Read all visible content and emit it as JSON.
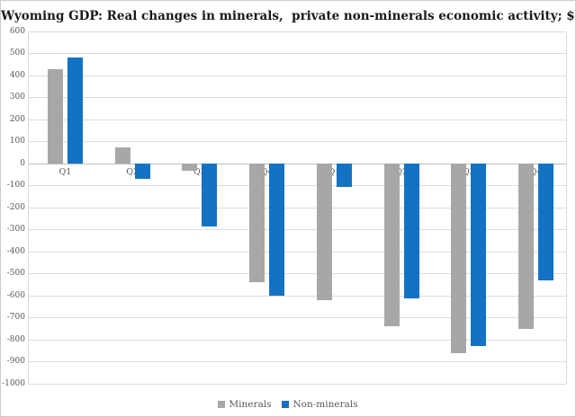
{
  "title": "Wyoming GDP: Real changes in minerals,  private non-minerals economic activity; $m",
  "legend": {
    "items": [
      {
        "label": "Minerals",
        "color": "#a7a7a7"
      },
      {
        "label": "Non-minerals",
        "color": "#1372c4"
      }
    ]
  },
  "chart_data": {
    "type": "bar",
    "title": "Wyoming GDP: Real changes in minerals,  private non-minerals economic activity; $m",
    "categories": [
      "Q1",
      "Q2",
      "Q3",
      "Q4",
      "Q1",
      "Q2",
      "Q3",
      "Q4"
    ],
    "series": [
      {
        "name": "Minerals",
        "color": "#a7a7a7",
        "values": [
          430,
          75,
          -30,
          -540,
          -620,
          -740,
          -860,
          -750
        ]
      },
      {
        "name": "Non-minerals",
        "color": "#1372c4",
        "values": [
          485,
          -70,
          -285,
          -600,
          -105,
          -610,
          -830,
          -530
        ]
      }
    ],
    "xlabel": "",
    "ylabel": "",
    "ylim": [
      -1000,
      600
    ],
    "ytick_step": 100,
    "grid": true,
    "legend_position": "bottom",
    "axis_colors": {
      "gridline": "#dcdcdc",
      "zero_line": "#bdbdbd",
      "tick_label": "#595959"
    }
  }
}
